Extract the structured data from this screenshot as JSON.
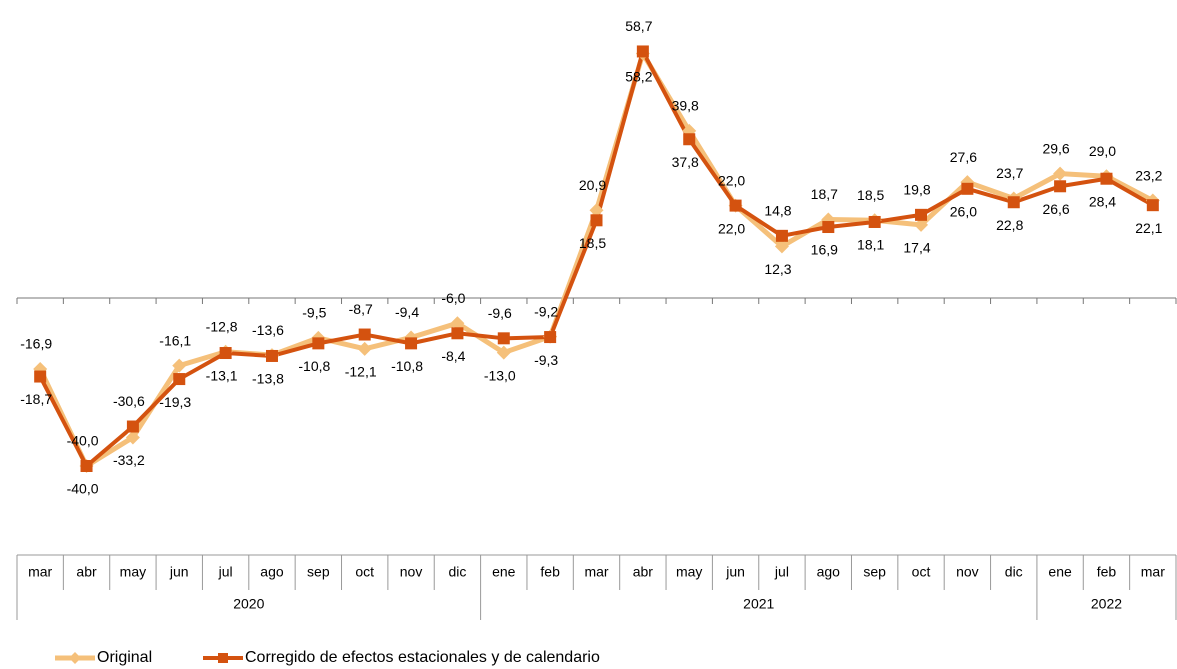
{
  "chart_data": {
    "type": "line",
    "categories": [
      "mar",
      "abr",
      "may",
      "jun",
      "jul",
      "ago",
      "sep",
      "oct",
      "nov",
      "dic",
      "ene",
      "feb",
      "mar",
      "abr",
      "may",
      "jun",
      "jul",
      "ago",
      "sep",
      "oct",
      "nov",
      "dic",
      "ene",
      "feb",
      "mar"
    ],
    "year_labels": [
      "2020",
      "2021",
      "2022"
    ],
    "ylim": [
      -50,
      70
    ],
    "series": [
      {
        "name": "Original",
        "color": "#f5c07a",
        "marker": "diamond",
        "values": [
          -16.9,
          -40.0,
          -33.2,
          -16.1,
          -12.8,
          -13.6,
          -9.5,
          -12.1,
          -9.4,
          -6.0,
          -13.0,
          -9.2,
          20.9,
          58.2,
          39.8,
          22.0,
          12.3,
          18.7,
          18.5,
          17.4,
          27.6,
          23.7,
          29.6,
          29.0,
          23.2
        ],
        "value_labels": [
          "-16,9",
          "-40,0",
          "-33,2",
          "-16,1",
          "-12,8",
          "-13,6",
          "-9,5",
          "-12,1",
          "-9,4",
          "-6,0",
          "-13,0",
          "-9,2",
          "20,9",
          "58,2",
          "39,8",
          "22,0",
          "12,3",
          "18,7",
          "18,5",
          "17,4",
          "27,6",
          "23,7",
          "29,6",
          "29,0",
          "23,2"
        ]
      },
      {
        "name": "Corregido de efectos estacionales y de calendario",
        "color": "#d4520f",
        "marker": "square",
        "values": [
          -18.7,
          -40.0,
          -30.6,
          -19.3,
          -13.1,
          -13.8,
          -10.8,
          -8.7,
          -10.8,
          -8.4,
          -9.6,
          -9.3,
          18.5,
          58.7,
          37.8,
          22.0,
          14.8,
          16.9,
          18.1,
          19.8,
          26.0,
          22.8,
          26.6,
          28.4,
          22.1
        ],
        "value_labels": [
          "-18,7",
          "-40,0",
          "-30,6",
          "-19,3",
          "-13,1",
          "-13,8",
          "-10,8",
          "-8,7",
          "-10,8",
          "-8,4",
          "-9,6",
          "-9,3",
          "18,5",
          "58,7",
          "37,8",
          "22,0",
          "14,8",
          "16,9",
          "18,1",
          "19,8",
          "26,0",
          "22,8",
          "26,6",
          "28,4",
          "22,1"
        ]
      }
    ]
  }
}
